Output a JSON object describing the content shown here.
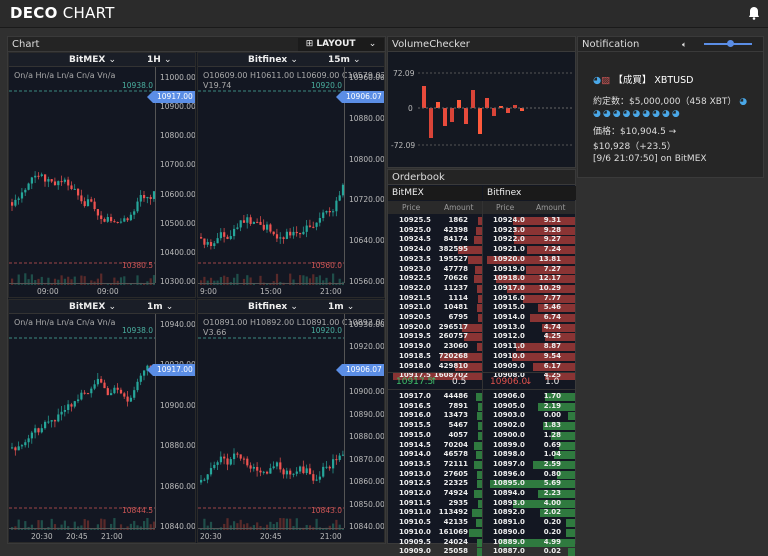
{
  "app": {
    "brand_bold": "DECO",
    "brand_light": " CHART"
  },
  "chart_panel": {
    "title": "Chart",
    "layout_label": "LAYOUT"
  },
  "charts": [
    {
      "exchange": "BitMEX",
      "timeframe": "1H",
      "ohlc": "On/a Hn/a Ln/a Cn/a Vn/a",
      "ticks": [
        "11000.00",
        "10900.00",
        "10800.00",
        "10700.00",
        "10600.00",
        "10500.00",
        "10400.00",
        "10300.00"
      ],
      "price_label": "10917.00",
      "top_label": "10938.0",
      "low_label": "10380.5",
      "xticks": [
        "09:00",
        "09:00"
      ]
    },
    {
      "exchange": "Bitfinex",
      "timeframe": "15m",
      "ohlc": "O10609.00 H10611.00 L10609.00 C10579.02",
      "vol": "V19.74",
      "ticks": [
        "10960.00",
        "10880.00",
        "10800.00",
        "10720.00",
        "10640.00",
        "10560.00"
      ],
      "price_label": "10906.07",
      "top_label": "10920.0",
      "low_label": "10560.0",
      "xticks": [
        "9:00",
        "15:00",
        "21:00"
      ]
    },
    {
      "exchange": "BitMEX",
      "timeframe": "1m",
      "ohlc": "On/a Hn/a Ln/a Cn/a Vn/a",
      "ticks": [
        "10940.00",
        "10920.00",
        "10900.00",
        "10880.00",
        "10860.00",
        "10840.00"
      ],
      "price_label": "10917.00",
      "top_label": "10938.0",
      "low_label": "10844.5",
      "xticks": [
        "20:30",
        "20:45",
        "21:00"
      ]
    },
    {
      "exchange": "Bitfinex",
      "timeframe": "1m",
      "ohlc": "O10891.00 H10892.00 L10891.00 C10892.00",
      "vol": "V3.66",
      "ticks": [
        "10930.00",
        "10920.00",
        "10910.00",
        "10900.00",
        "10890.00",
        "10880.00",
        "10870.00",
        "10860.00",
        "10850.00",
        "10840.00"
      ],
      "price_label": "10906.07",
      "top_label": "10920.0",
      "low_label": "10843.0",
      "xticks": [
        "20:30",
        "20:45",
        "21:00"
      ]
    }
  ],
  "volume_checker": {
    "title": "VolumeChecker",
    "top": "72.09",
    "mid": "0",
    "bottom": "-72.09"
  },
  "orderbook": {
    "title": "Orderbook",
    "bitmex": "BitMEX",
    "bitfinex": "Bitfinex",
    "price_h": "Price",
    "amount_h": "Amount",
    "bitmex_asks": [
      [
        "10925.5",
        "1862"
      ],
      [
        "10925.0",
        "42398"
      ],
      [
        "10924.5",
        "84174"
      ],
      [
        "10924.0",
        "382595"
      ],
      [
        "10923.5",
        "195527"
      ],
      [
        "10923.0",
        "47778"
      ],
      [
        "10922.5",
        "70626"
      ],
      [
        "10922.0",
        "11237"
      ],
      [
        "10921.5",
        "1114"
      ],
      [
        "10921.0",
        "10481"
      ],
      [
        "10920.5",
        "6795"
      ],
      [
        "10920.0",
        "296517"
      ],
      [
        "10919.5",
        "260757"
      ],
      [
        "10919.0",
        "23060"
      ],
      [
        "10918.5",
        "720268"
      ],
      [
        "10918.0",
        "429810"
      ],
      [
        "10917.5",
        "1608702"
      ]
    ],
    "bitfinex_asks": [
      [
        "10924.0",
        "9.31"
      ],
      [
        "10923.0",
        "9.28"
      ],
      [
        "10922.0",
        "9.27"
      ],
      [
        "10921.0",
        "7.24"
      ],
      [
        "10920.0",
        "13.81"
      ],
      [
        "10919.0",
        "7.27"
      ],
      [
        "10918.0",
        "12.17"
      ],
      [
        "10917.0",
        "10.29"
      ],
      [
        "10916.0",
        "7.77"
      ],
      [
        "10915.0",
        "5.46"
      ],
      [
        "10914.0",
        "6.74"
      ],
      [
        "10913.0",
        "4.74"
      ],
      [
        "10912.0",
        "4.25"
      ],
      [
        "10911.0",
        "8.87"
      ],
      [
        "10910.0",
        "9.54"
      ],
      [
        "10909.0",
        "6.17"
      ],
      [
        "10908.0",
        "4.25"
      ]
    ],
    "bitmex_mid": "10917.5",
    "bitmex_mid_amt": "0.5",
    "bitfinex_mid": "10906.0",
    "bitfinex_mid_amt": "1.0",
    "bitmex_bids": [
      [
        "10917.0",
        "44486"
      ],
      [
        "10916.5",
        "7891"
      ],
      [
        "10916.0",
        "13473"
      ],
      [
        "10915.5",
        "5467"
      ],
      [
        "10915.0",
        "4057"
      ],
      [
        "10914.5",
        "70204"
      ],
      [
        "10914.0",
        "46578"
      ],
      [
        "10913.5",
        "72111"
      ],
      [
        "10913.0",
        "27605"
      ],
      [
        "10912.5",
        "22325"
      ],
      [
        "10912.0",
        "74924"
      ],
      [
        "10911.5",
        "2935"
      ],
      [
        "10911.0",
        "113492"
      ],
      [
        "10910.5",
        "42135"
      ],
      [
        "10910.0",
        "161069"
      ],
      [
        "10909.5",
        "24024"
      ],
      [
        "10909.0",
        "25058"
      ]
    ],
    "bitfinex_bids": [
      [
        "10906.0",
        "1.70"
      ],
      [
        "10905.0",
        "2.19"
      ],
      [
        "10903.0",
        "0.00"
      ],
      [
        "10902.0",
        "1.83"
      ],
      [
        "10900.0",
        "1.28"
      ],
      [
        "10899.0",
        "0.69"
      ],
      [
        "10898.0",
        "1.04"
      ],
      [
        "10897.0",
        "2.59"
      ],
      [
        "10896.0",
        "0.80"
      ],
      [
        "10895.0",
        "5.69"
      ],
      [
        "10894.0",
        "2.23"
      ],
      [
        "10893.0",
        "4.00"
      ],
      [
        "10892.0",
        "2.02"
      ],
      [
        "10891.0",
        "0.20"
      ],
      [
        "10890.0",
        "0.20"
      ],
      [
        "10889.0",
        "4.99"
      ],
      [
        "10887.0",
        "0.02"
      ]
    ]
  },
  "notification": {
    "title": "Notification",
    "line1": "【成買】 XBTUSD",
    "line2": "約定数：$5,000,000（458 XBT）",
    "line4": "価格：$10,904.5 →",
    "line5": "$10,928（+23.5）",
    "line6": "[9/6 21:07:50] on BitMEX"
  },
  "colors": {
    "up": "#26a69a",
    "down": "#ef5350",
    "accent": "#5b8ee6",
    "ask": "#b84a4a",
    "bid": "#2f8f4f"
  }
}
